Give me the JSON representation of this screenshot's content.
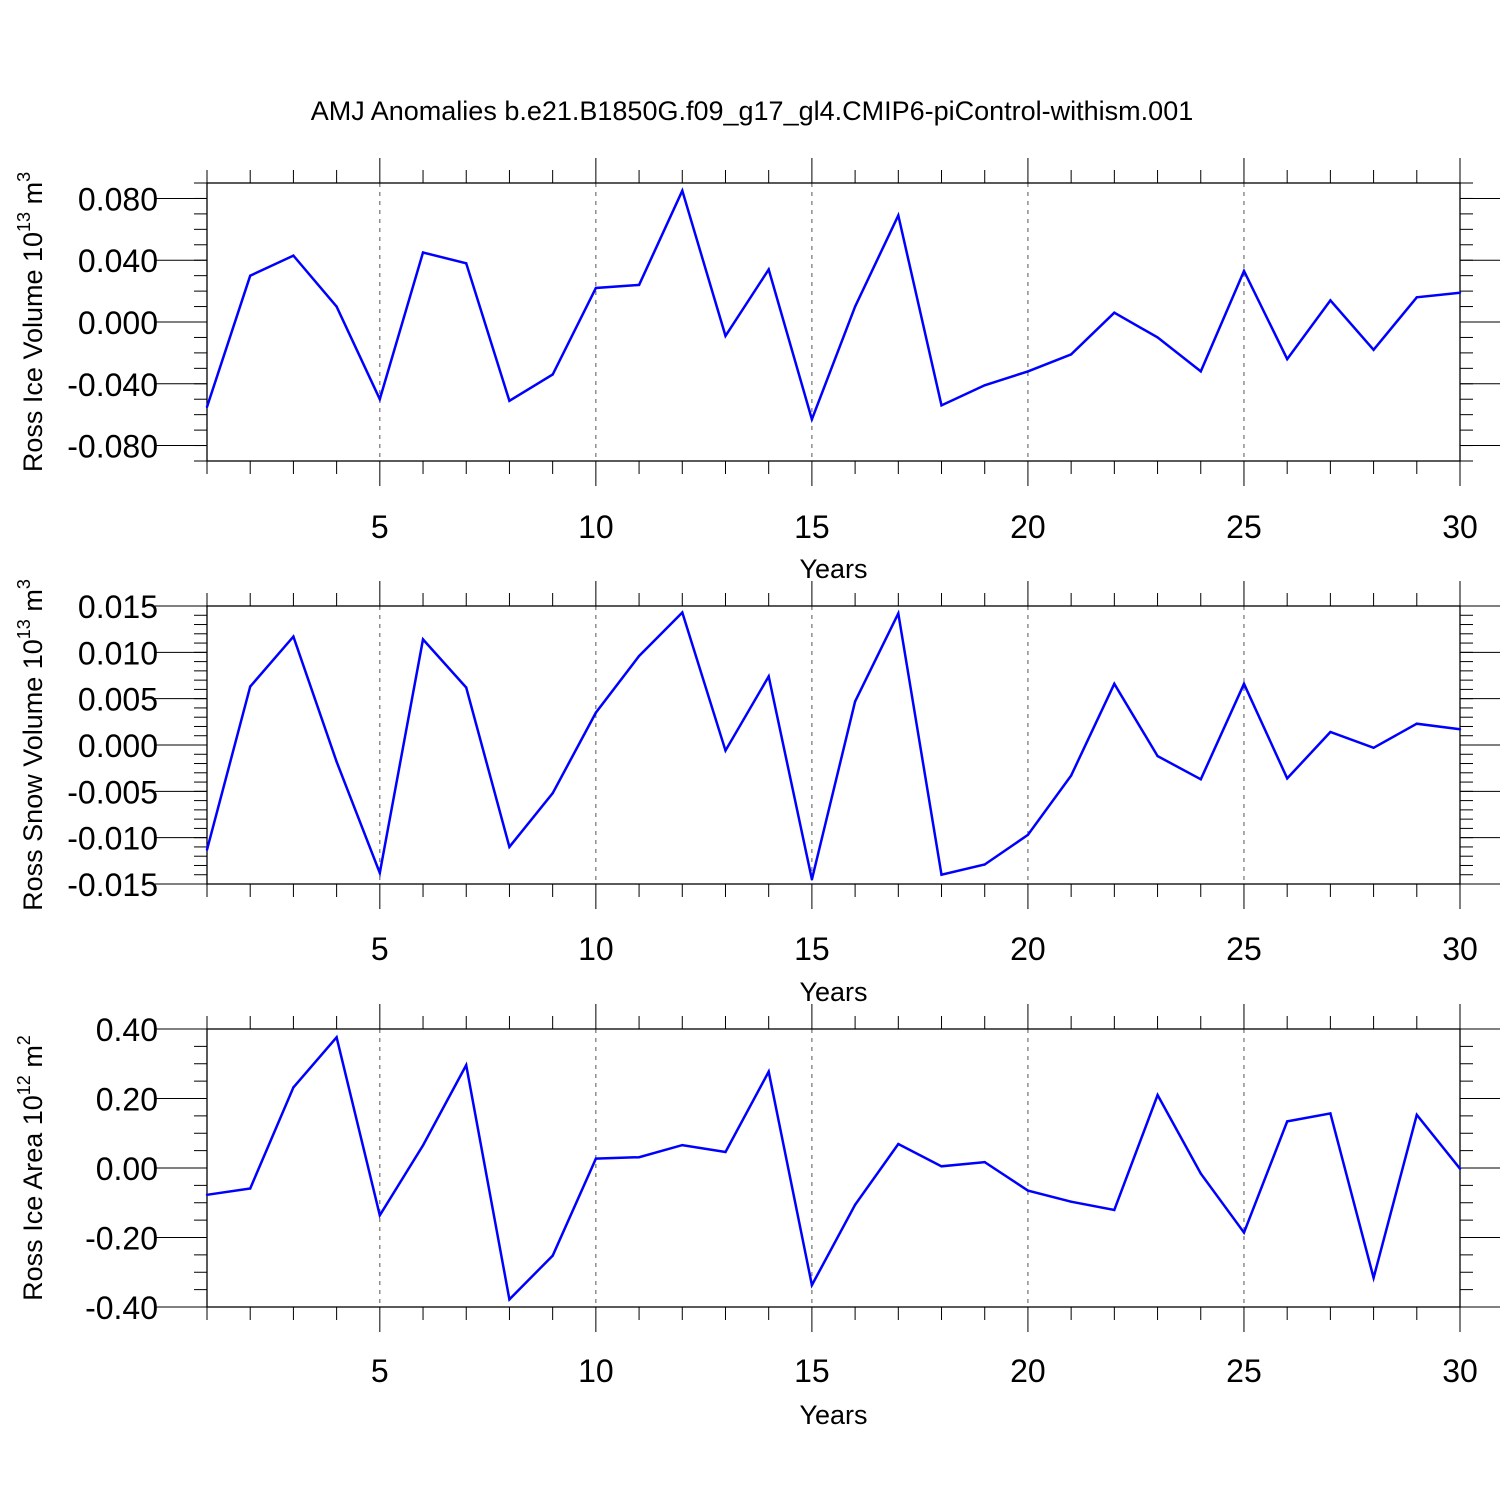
{
  "figure": {
    "title": "AMJ Anomalies b.e21.B1850G.f09_g17_gl4.CMIP6-piControl-withism.001",
    "line_color": "#0000ff",
    "grid_color": "#555555"
  },
  "chart_data": [
    {
      "type": "line",
      "xlabel": "Years",
      "ylabel": "Ross Ice Volume 10",
      "ylabel_sup": "13",
      "ylabel_unit": "m",
      "ylabel_unit_sup": "3",
      "xlim": [
        1,
        30
      ],
      "ylim": [
        -0.09,
        0.09
      ],
      "x_ticks": [
        5,
        10,
        15,
        20,
        25,
        30
      ],
      "x_tick_labels": [
        "5",
        "10",
        "15",
        "20",
        "25",
        "30"
      ],
      "y_ticks": [
        -0.08,
        -0.04,
        0.0,
        0.04,
        0.08
      ],
      "y_tick_labels": [
        "-0.080",
        "-0.040",
        "0.000",
        "0.040",
        "0.080"
      ],
      "y_minor_step": 0.01,
      "x_grid": [
        5,
        10,
        15,
        20,
        25
      ],
      "x": [
        1,
        2,
        3,
        4,
        5,
        6,
        7,
        8,
        9,
        10,
        11,
        12,
        13,
        14,
        15,
        16,
        17,
        18,
        19,
        20,
        21,
        22,
        23,
        24,
        25,
        26,
        27,
        28,
        29,
        30
      ],
      "values": [
        -0.055,
        0.03,
        0.043,
        0.01,
        -0.05,
        0.045,
        0.038,
        -0.051,
        -0.034,
        0.022,
        0.024,
        0.085,
        -0.009,
        0.034,
        -0.063,
        0.01,
        0.069,
        -0.054,
        -0.041,
        -0.032,
        -0.021,
        0.006,
        -0.01,
        -0.032,
        0.033,
        -0.024,
        0.014,
        -0.018,
        0.016,
        0.019
      ]
    },
    {
      "type": "line",
      "xlabel": "Years",
      "ylabel": "Ross Snow Volume 10",
      "ylabel_sup": "13",
      "ylabel_unit": "m",
      "ylabel_unit_sup": "3",
      "xlim": [
        1,
        30
      ],
      "ylim": [
        -0.015,
        0.015
      ],
      "x_ticks": [
        5,
        10,
        15,
        20,
        25,
        30
      ],
      "x_tick_labels": [
        "5",
        "10",
        "15",
        "20",
        "25",
        "30"
      ],
      "y_ticks": [
        -0.015,
        -0.01,
        -0.005,
        0.0,
        0.005,
        0.01,
        0.015
      ],
      "y_tick_labels": [
        "-0.015",
        "-0.010",
        "-0.005",
        "0.000",
        "0.005",
        "0.010",
        "0.015"
      ],
      "y_minor_step": 0.001,
      "x_grid": [
        5,
        10,
        15,
        20,
        25
      ],
      "x": [
        1,
        2,
        3,
        4,
        5,
        6,
        7,
        8,
        9,
        10,
        11,
        12,
        13,
        14,
        15,
        16,
        17,
        18,
        19,
        20,
        21,
        22,
        23,
        24,
        25,
        26,
        27,
        28,
        29,
        30
      ],
      "values": [
        -0.0113,
        0.0063,
        0.0117,
        -0.0018,
        -0.0138,
        0.0114,
        0.0062,
        -0.011,
        -0.0052,
        0.0035,
        0.0096,
        0.0143,
        -0.0006,
        0.0074,
        -0.0145,
        0.0047,
        0.0142,
        -0.014,
        -0.0129,
        -0.0097,
        -0.0033,
        0.0066,
        -0.0012,
        -0.0037,
        0.0066,
        -0.0036,
        0.0014,
        -0.0003,
        0.0023,
        0.0017
      ]
    },
    {
      "type": "line",
      "xlabel": "Years",
      "ylabel": "Ross Ice Area 10",
      "ylabel_sup": "12",
      "ylabel_unit": "m",
      "ylabel_unit_sup": "2",
      "xlim": [
        1,
        30
      ],
      "ylim": [
        -0.4,
        0.4
      ],
      "x_ticks": [
        5,
        10,
        15,
        20,
        25,
        30
      ],
      "x_tick_labels": [
        "5",
        "10",
        "15",
        "20",
        "25",
        "30"
      ],
      "y_ticks": [
        -0.4,
        -0.2,
        0.0,
        0.2,
        0.4
      ],
      "y_tick_labels": [
        "-0.40",
        "-0.20",
        "0.00",
        "0.20",
        "0.40"
      ],
      "y_minor_step": 0.05,
      "x_grid": [
        5,
        10,
        15,
        20,
        25
      ],
      "x": [
        1,
        2,
        3,
        4,
        5,
        6,
        7,
        8,
        9,
        10,
        11,
        12,
        13,
        14,
        15,
        16,
        17,
        18,
        19,
        20,
        21,
        22,
        23,
        24,
        25,
        26,
        27,
        28,
        29,
        30
      ],
      "values": [
        -0.077,
        -0.059,
        0.232,
        0.376,
        -0.136,
        0.065,
        0.296,
        -0.378,
        -0.252,
        0.027,
        0.031,
        0.066,
        0.046,
        0.277,
        -0.337,
        -0.106,
        0.069,
        0.005,
        0.017,
        -0.065,
        -0.097,
        -0.121,
        0.21,
        -0.016,
        -0.186,
        0.134,
        0.157,
        -0.316,
        0.153,
        -0.002
      ]
    }
  ]
}
